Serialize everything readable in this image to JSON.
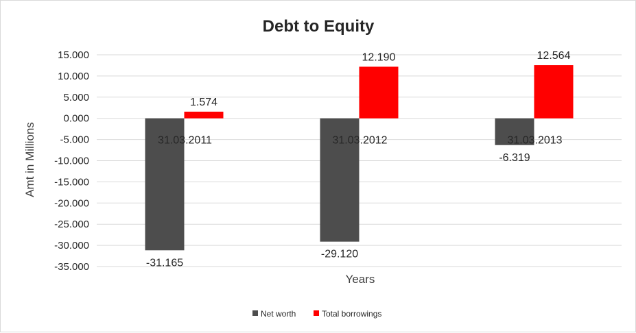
{
  "chart_data": {
    "type": "bar",
    "title": "Debt to Equity",
    "xlabel": "Years",
    "ylabel": "Amt in Millions",
    "categories": [
      "31.03.2011",
      "31.03.2012",
      "31.03.2013"
    ],
    "series": [
      {
        "name": "Net worth",
        "values": [
          -31.165,
          -29.12,
          -6.319
        ],
        "labels": [
          "-31.165",
          "-29.120",
          "-6.319"
        ],
        "color": "#4d4d4d"
      },
      {
        "name": "Total borrowings",
        "values": [
          1.574,
          12.19,
          12.564
        ],
        "labels": [
          "1.574",
          "12.190",
          "12.564"
        ],
        "color": "#ff0000"
      }
    ],
    "ylim": [
      -35,
      15
    ],
    "yticks": [
      15,
      10,
      5,
      0,
      -5,
      -10,
      -15,
      -20,
      -25,
      -30,
      -35
    ],
    "ytick_labels": [
      "15.000",
      "10.000",
      "5.000",
      "0.000",
      "-5.000",
      "-10.000",
      "-15.000",
      "-20.000",
      "-25.000",
      "-30.000",
      "-35.000"
    ],
    "grid": true,
    "legend_position": "bottom"
  }
}
